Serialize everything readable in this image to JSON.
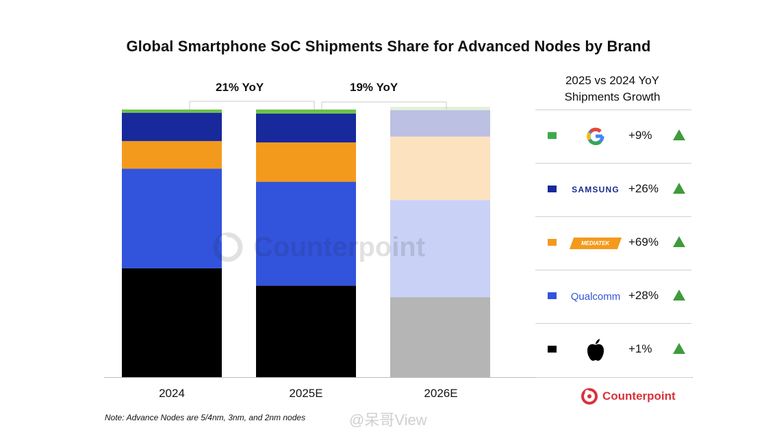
{
  "title": "Global Smartphone SoC Shipments Share for Advanced Nodes by Brand",
  "chart_data": {
    "type": "bar",
    "stacked": true,
    "percent_stacked": true,
    "categories": [
      "2024",
      "2025E",
      "2026E"
    ],
    "faded_categories": [
      "2026E"
    ],
    "series": [
      {
        "name": "Apple",
        "color": "#000000",
        "faded_color": "#b5b5b5",
        "values": [
          40.7,
          34.2,
          29.9
        ]
      },
      {
        "name": "Qualcomm",
        "color": "#3253dc",
        "faded_color": "#c9d2f6",
        "values": [
          37.2,
          38.8,
          36.3
        ]
      },
      {
        "name": "MediaTek",
        "color": "#f39a1c",
        "faded_color": "#fde2c0",
        "values": [
          10.3,
          14.7,
          23.7
        ]
      },
      {
        "name": "Samsung",
        "color": "#17299b",
        "faded_color": "#bcc0e3",
        "values": [
          10.6,
          10.8,
          9.9
        ]
      },
      {
        "name": "Google",
        "color": "#6cc24a",
        "faded_color": "#dff1d6",
        "values": [
          1.2,
          1.5,
          1.2
        ]
      }
    ],
    "ylim": [
      0,
      100
    ],
    "annotations": [
      {
        "text": "21% YoY",
        "from": "2024",
        "to": "2025E"
      },
      {
        "text": "19% YoY",
        "from": "2025E",
        "to": "2026E"
      }
    ]
  },
  "legend": {
    "title_line1": "2025 vs 2024 YoY",
    "title_line2": "Shipments Growth",
    "items": [
      {
        "brand": "Google",
        "logo": "G",
        "swatch": "#3eab4b",
        "growth": "+9%",
        "trend": "up-triangle-icon"
      },
      {
        "brand": "Samsung",
        "logo": "SAMSUNG",
        "swatch": "#17299b",
        "growth": "+26%",
        "trend": "up-triangle-icon"
      },
      {
        "brand": "MediaTek",
        "logo": "MEDIATEK",
        "swatch": "#f39a1c",
        "growth": "+69%",
        "trend": "up-triangle-icon"
      },
      {
        "brand": "Qualcomm",
        "logo": "Qualcomm",
        "swatch": "#3253dc",
        "growth": "+28%",
        "trend": "up-triangle-icon"
      },
      {
        "brand": "Apple",
        "logo": "apple-logo",
        "swatch": "#000000",
        "growth": "+1%",
        "trend": "up-triangle-icon"
      }
    ]
  },
  "note": "Note: Advance Nodes are 5/4nm, 3nm, and 2nm nodes",
  "brand": "Counterpoint",
  "watermark_text": "Counterpoint",
  "overlay_watermark": "@呆哥View",
  "colors": {
    "trend_up": "#3e9b3a",
    "brand_red": "#d8323a"
  }
}
